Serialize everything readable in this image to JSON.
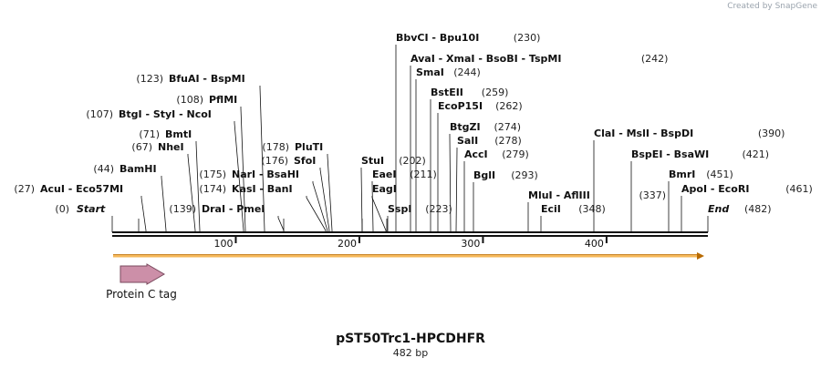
{
  "credit": "Created by SnapGene",
  "map": {
    "title": "pST50Trc1-HPCDHFR",
    "length": "482 bp",
    "total_bp": 482,
    "scale_ticks": [
      "100",
      "200",
      "300",
      "400"
    ],
    "start_label": "Start",
    "start_pos": "(0)",
    "end_label": "End",
    "end_pos": "(482)",
    "feature": {
      "label": "Protein C tag",
      "color": "#cc8fa8",
      "orf_color": "#f5b85a"
    }
  },
  "sites": [
    {
      "bp": 27,
      "names": [
        "AcuI",
        "Eco57MI"
      ],
      "pos": "(27)",
      "side": "left"
    },
    {
      "bp": 44,
      "names": [
        "BamHI"
      ],
      "pos": "(44)",
      "side": "left"
    },
    {
      "bp": 67,
      "names": [
        "NheI"
      ],
      "pos": "(67)",
      "side": "left"
    },
    {
      "bp": 71,
      "names": [
        "BmtI"
      ],
      "pos": "(71)",
      "side": "left"
    },
    {
      "bp": 107,
      "names": [
        "BtgI",
        "StyI",
        "NcoI"
      ],
      "pos": "(107)",
      "side": "left"
    },
    {
      "bp": 108,
      "names": [
        "PflMI"
      ],
      "pos": "(108)",
      "side": "left"
    },
    {
      "bp": 123,
      "names": [
        "BfuAI",
        "BspMI"
      ],
      "pos": "(123)",
      "side": "left"
    },
    {
      "bp": 139,
      "names": [
        "DraI",
        "PmeI"
      ],
      "pos": "(139)",
      "side": "left"
    },
    {
      "bp": 174,
      "names": [
        "KasI",
        "BanI"
      ],
      "pos": "(174)",
      "side": "left"
    },
    {
      "bp": 175,
      "names": [
        "NarI",
        "BsaHI"
      ],
      "pos": "(175)",
      "side": "left"
    },
    {
      "bp": 176,
      "names": [
        "SfoI"
      ],
      "pos": "(176)",
      "side": "left"
    },
    {
      "bp": 178,
      "names": [
        "PluTI"
      ],
      "pos": "(178)",
      "side": "left"
    },
    {
      "bp": 202,
      "names": [
        "StuI"
      ],
      "pos": "(202)",
      "side": "right"
    },
    {
      "bp": 211,
      "names": [
        "EaeI"
      ],
      "pos": "(211)",
      "side": "right"
    },
    {
      "bp": 223,
      "names": [
        "EagI"
      ],
      "pos": "",
      "side": "right"
    },
    {
      "bp": 223,
      "names": [
        "SspI"
      ],
      "pos": "(223)",
      "side": "right"
    },
    {
      "bp": 230,
      "names": [
        "BbvCI",
        "Bpu10I"
      ],
      "pos": "(230)",
      "side": "right"
    },
    {
      "bp": 242,
      "names": [
        "AvaI",
        "XmaI",
        "BsoBI",
        "TspMI"
      ],
      "pos": "(242)",
      "side": "right"
    },
    {
      "bp": 244,
      "names": [
        "SmaI"
      ],
      "pos": "(244)",
      "side": "right"
    },
    {
      "bp": 259,
      "names": [
        "BstEII"
      ],
      "pos": "(259)",
      "side": "right"
    },
    {
      "bp": 262,
      "names": [
        "EcoP15I"
      ],
      "pos": "(262)",
      "side": "right"
    },
    {
      "bp": 274,
      "names": [
        "BtgZI"
      ],
      "pos": "(274)",
      "side": "right"
    },
    {
      "bp": 278,
      "names": [
        "SalI"
      ],
      "pos": "(278)",
      "side": "right"
    },
    {
      "bp": 279,
      "names": [
        "AccI"
      ],
      "pos": "(279)",
      "side": "right"
    },
    {
      "bp": 293,
      "names": [
        "BglI"
      ],
      "pos": "(293)",
      "side": "right"
    },
    {
      "bp": 337,
      "names": [
        "MluI",
        "AflIII"
      ],
      "pos": "(337)",
      "side": "right"
    },
    {
      "bp": 348,
      "names": [
        "EciI"
      ],
      "pos": "(348)",
      "side": "right"
    },
    {
      "bp": 390,
      "names": [
        "ClaI",
        "MslI",
        "BspDI"
      ],
      "pos": "(390)",
      "side": "right"
    },
    {
      "bp": 421,
      "names": [
        "BspEI",
        "BsaWI"
      ],
      "pos": "(421)",
      "side": "right"
    },
    {
      "bp": 451,
      "names": [
        "BmrI"
      ],
      "pos": "(451)",
      "side": "right"
    },
    {
      "bp": 461,
      "names": [
        "ApoI",
        "EcoRI"
      ],
      "pos": "(461)",
      "side": "right"
    }
  ]
}
